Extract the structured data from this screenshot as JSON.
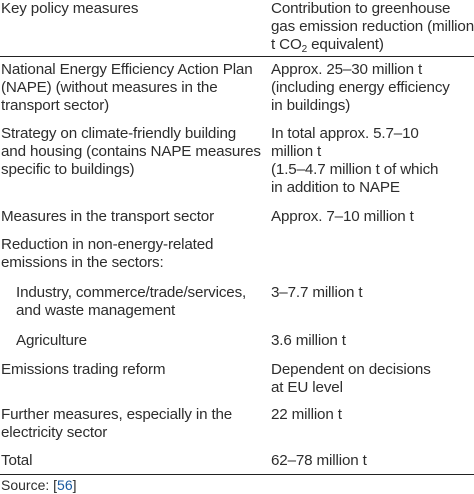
{
  "header": {
    "measure": "Key policy measures",
    "contribution_pre": "Contribution to greenhouse\ngas emission reduction (million\nt CO",
    "contribution_sub": "2",
    "contribution_post": " equivalent)"
  },
  "rows": [
    {
      "measure": "National Energy Efficiency Action Plan\n(NAPE) (without measures in the\ntransport sector)",
      "value": "Approx. 25–30 million t\n(including energy efficiency\nin buildings)"
    },
    {
      "measure": "Strategy on climate-friendly building\nand housing (contains NAPE measures\nspecific to buildings)",
      "value": "In total approx. 5.7–10\nmillion t\n(1.5–4.7 million t of which\nin addition to NAPE"
    },
    {
      "measure": "Measures in the transport sector",
      "value": "Approx. 7–10 million t"
    },
    {
      "measure": "Reduction in non-energy-related\nemissions in the sectors:",
      "value": ""
    },
    {
      "measure": "Industry, commerce/trade/services,\nand waste management",
      "value": "3–7.7 million t"
    },
    {
      "measure": "Agriculture",
      "value": "3.6 million t"
    },
    {
      "measure": "Emissions trading reform",
      "value": "Dependent on decisions\nat EU level"
    },
    {
      "measure": "Further measures, especially in the\nelectricity sector",
      "value": "22 million t"
    },
    {
      "measure": "Total",
      "value": "62–78 million t"
    }
  ],
  "source": {
    "label": "Source: [",
    "ref": "56",
    "close": "]"
  }
}
